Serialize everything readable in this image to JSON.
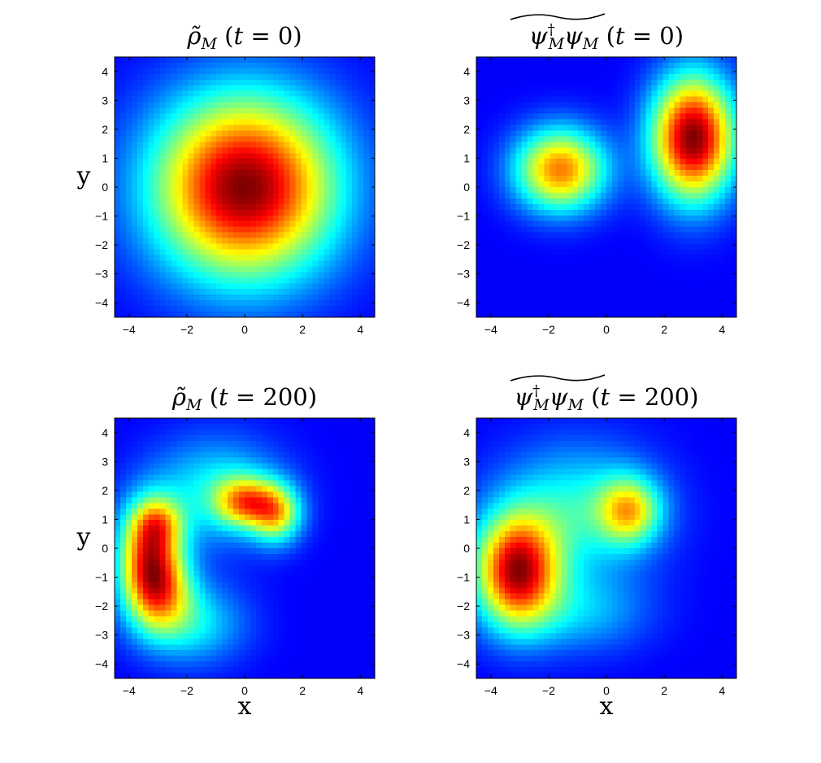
{
  "chart_data": [
    {
      "type": "heatmap",
      "title": "ρ̃_M (t = 0)",
      "xlabel": "",
      "ylabel": "y",
      "xlim": [
        -4.5,
        4.5
      ],
      "ylim": [
        -4.5,
        4.5
      ],
      "xticks": [
        -4,
        -2,
        0,
        2,
        4
      ],
      "yticks": [
        -4,
        -3,
        -2,
        -1,
        0,
        1,
        2,
        3,
        4
      ],
      "colormap": "jet",
      "peaks": [
        {
          "x": 0.0,
          "y": 0.0,
          "sx": 2.2,
          "sy": 2.2,
          "amplitude": 1.0
        }
      ]
    },
    {
      "type": "heatmap",
      "title": "ψ†_M ψ_M (t = 0)",
      "xlabel": "",
      "ylabel": "",
      "xlim": [
        -4.5,
        4.5
      ],
      "ylim": [
        -4.5,
        4.5
      ],
      "xticks": [
        -4,
        -2,
        0,
        2,
        4
      ],
      "yticks": [
        -4,
        -3,
        -2,
        -1,
        0,
        1,
        2,
        3,
        4
      ],
      "colormap": "jet",
      "peaks": [
        {
          "x": -1.6,
          "y": 0.6,
          "sx": 1.1,
          "sy": 1.0,
          "amplitude": 0.72
        },
        {
          "x": 3.0,
          "y": 1.7,
          "sx": 1.0,
          "sy": 1.5,
          "amplitude": 1.0
        }
      ]
    },
    {
      "type": "heatmap",
      "title": "ρ̃_M (t = 200)",
      "xlabel": "x",
      "ylabel": "y",
      "xlim": [
        -4.5,
        4.5
      ],
      "ylim": [
        -4.5,
        4.5
      ],
      "xticks": [
        -4,
        -2,
        0,
        2,
        4
      ],
      "yticks": [
        -4,
        -3,
        -2,
        -1,
        0,
        1,
        2,
        3,
        4
      ],
      "colormap": "jet",
      "peaks": [
        {
          "x": -3.3,
          "y": -0.1,
          "sx": 0.75,
          "sy": 1.2,
          "amplitude": 0.7
        },
        {
          "x": -3.0,
          "y": -1.5,
          "sx": 0.8,
          "sy": 1.0,
          "amplitude": 0.55
        },
        {
          "x": -3.0,
          "y": 0.9,
          "sx": 0.6,
          "sy": 0.6,
          "amplitude": 0.3
        },
        {
          "x": 0.0,
          "y": 1.6,
          "sx": 0.7,
          "sy": 0.6,
          "amplitude": 0.55
        },
        {
          "x": 1.1,
          "y": 1.2,
          "sx": 0.6,
          "sy": 0.7,
          "amplitude": 0.55
        },
        {
          "x": -1.0,
          "y": 2.0,
          "sx": 1.6,
          "sy": 1.3,
          "amplitude": 0.3
        },
        {
          "x": -1.8,
          "y": -2.6,
          "sx": 1.3,
          "sy": 1.0,
          "amplitude": 0.28
        }
      ]
    },
    {
      "type": "heatmap",
      "title": "ψ†_M ψ_M (t = 200)",
      "xlabel": "x",
      "ylabel": "",
      "xlim": [
        -4.5,
        4.5
      ],
      "ylim": [
        -4.5,
        4.5
      ],
      "xticks": [
        -4,
        -2,
        0,
        2,
        4
      ],
      "yticks": [
        -4,
        -3,
        -2,
        -1,
        0,
        1,
        2,
        3,
        4
      ],
      "colormap": "jet",
      "peaks": [
        {
          "x": -3.1,
          "y": -0.8,
          "sx": 1.0,
          "sy": 1.35,
          "amplitude": 1.0
        },
        {
          "x": 0.8,
          "y": 1.3,
          "sx": 0.75,
          "sy": 0.8,
          "amplitude": 0.55
        },
        {
          "x": -1.0,
          "y": 1.3,
          "sx": 1.9,
          "sy": 1.6,
          "amplitude": 0.35
        },
        {
          "x": -0.8,
          "y": -2.2,
          "sx": 1.6,
          "sy": 1.0,
          "amplitude": 0.22
        }
      ]
    }
  ]
}
